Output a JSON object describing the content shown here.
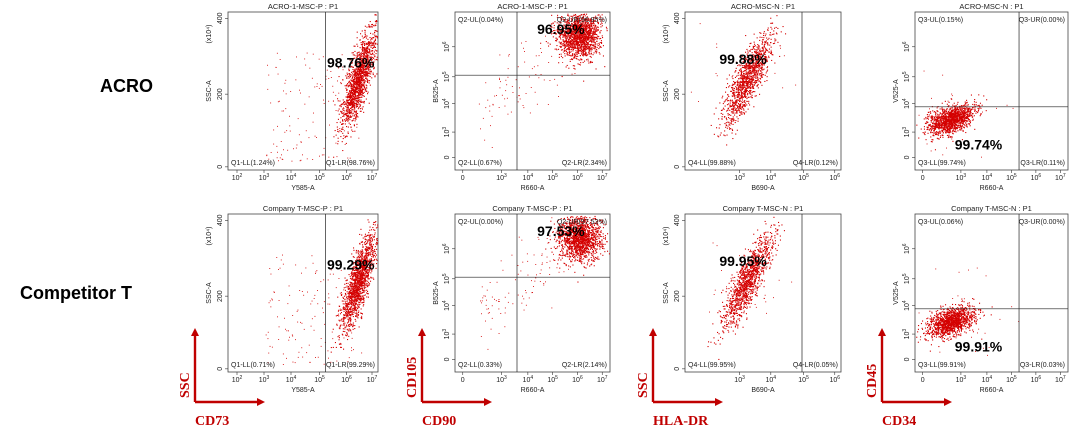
{
  "row_labels": [
    "ACRO",
    "Competitor T"
  ],
  "marker_labels": [
    {
      "x": "CD73",
      "y": "SSC"
    },
    {
      "x": "CD90",
      "y": "CD105"
    },
    {
      "x": "HLA-DR",
      "y": "SSC"
    },
    {
      "x": "CD34",
      "y": "CD45"
    }
  ],
  "colors": {
    "dots": "#d40000",
    "marker_text": "#c00000",
    "axis_arrow": "#c00000",
    "frame": "#444444"
  },
  "chart_data": [
    {
      "type": "scatter",
      "title": "ACRO-1-MSC-P : P1",
      "xlabel": "Y585-A",
      "ylabel": "SSC-A",
      "y_scale": "linear",
      "y_unit": "(x10⁴)",
      "xticks": [
        "10²",
        "10³",
        "10⁴",
        "10⁵",
        "10⁶",
        "10⁷"
      ],
      "yticks": [
        "0",
        "200",
        "400"
      ],
      "quadrants": [
        "Q1-LL(1.24%)",
        "Q1-LR(98.76%)"
      ],
      "highlight": "98.76%"
    },
    {
      "type": "scatter",
      "title": "ACRO-1-MSC-P : P1",
      "xlabel": "R660-A",
      "ylabel": "B525-A",
      "y_scale": "log",
      "xticks": [
        "0",
        "10³",
        "10⁴",
        "10⁵",
        "10⁶",
        "10⁷"
      ],
      "yticks": [
        "0",
        "10³",
        "10⁴",
        "10⁵",
        "10⁶"
      ],
      "quadrants": [
        "Q2-UL(0.04%)",
        "Q2-UR(96.95%)",
        "Q2-LL(0.67%)",
        "Q2-LR(2.34%)"
      ],
      "highlight": "96.95%"
    },
    {
      "type": "scatter",
      "title": "ACRO-MSC-N : P1",
      "xlabel": "B690-A",
      "ylabel": "SSC-A",
      "y_scale": "linear",
      "y_unit": "(x10⁴)",
      "xticks": [
        "10³",
        "10⁴",
        "10⁵",
        "10⁶"
      ],
      "yticks": [
        "0",
        "200",
        "400"
      ],
      "quadrants": [
        "Q4-LL(99.88%)",
        "Q4-LR(0.12%)"
      ],
      "highlight": "99.88%"
    },
    {
      "type": "scatter",
      "title": "ACRO-MSC-N : P1",
      "xlabel": "R660-A",
      "ylabel": "V525-A",
      "y_scale": "log",
      "xticks": [
        "0",
        "10³",
        "10⁴",
        "10⁵",
        "10⁶",
        "10⁷"
      ],
      "yticks": [
        "0",
        "10³",
        "10⁴",
        "10⁵",
        "10⁶"
      ],
      "quadrants": [
        "Q3-UL(0.15%)",
        "Q3-UR(0.00%)",
        "Q3-LL(99.74%)",
        "Q3-LR(0.11%)"
      ],
      "highlight": "99.74%"
    },
    {
      "type": "scatter",
      "title": "Company T-MSC-P : P1",
      "xlabel": "Y585-A",
      "ylabel": "SSC-A",
      "y_scale": "linear",
      "y_unit": "(x10⁴)",
      "xticks": [
        "10²",
        "10³",
        "10⁴",
        "10⁵",
        "10⁶",
        "10⁷"
      ],
      "yticks": [
        "0",
        "200",
        "400"
      ],
      "quadrants": [
        "Q1-LL(0.71%)",
        "Q1-LR(99.29%)"
      ],
      "highlight": "99.29%"
    },
    {
      "type": "scatter",
      "title": "Company T-MSC-P : P1",
      "xlabel": "R660-A",
      "ylabel": "B525-A",
      "y_scale": "log",
      "xticks": [
        "0",
        "10³",
        "10⁴",
        "10⁵",
        "10⁶",
        "10⁷"
      ],
      "yticks": [
        "0",
        "10³",
        "10⁴",
        "10⁵",
        "10⁶"
      ],
      "quadrants": [
        "Q2-UL(0.00%)",
        "Q2-UR(97.53%)",
        "Q2-LL(0.33%)",
        "Q2-LR(2.14%)"
      ],
      "highlight": "97.53%"
    },
    {
      "type": "scatter",
      "title": "Company T-MSC-N : P1",
      "xlabel": "B690-A",
      "ylabel": "SSC-A",
      "y_scale": "linear",
      "y_unit": "(x10⁴)",
      "xticks": [
        "10³",
        "10⁴",
        "10⁵",
        "10⁶"
      ],
      "yticks": [
        "0",
        "200",
        "400"
      ],
      "quadrants": [
        "Q4-LL(99.95%)",
        "Q4-LR(0.05%)"
      ],
      "highlight": "99.95%"
    },
    {
      "type": "scatter",
      "title": "Company T-MSC-N : P1",
      "xlabel": "R660-A",
      "ylabel": "V525-A",
      "y_scale": "log",
      "xticks": [
        "0",
        "10³",
        "10⁴",
        "10⁵",
        "10⁶",
        "10⁷"
      ],
      "yticks": [
        "0",
        "10³",
        "10⁴",
        "10⁵",
        "10⁶"
      ],
      "quadrants": [
        "Q3-UL(0.06%)",
        "Q3-UR(0.00%)",
        "Q3-LL(99.91%)",
        "Q3-LR(0.03%)"
      ],
      "highlight": "99.91%"
    }
  ]
}
